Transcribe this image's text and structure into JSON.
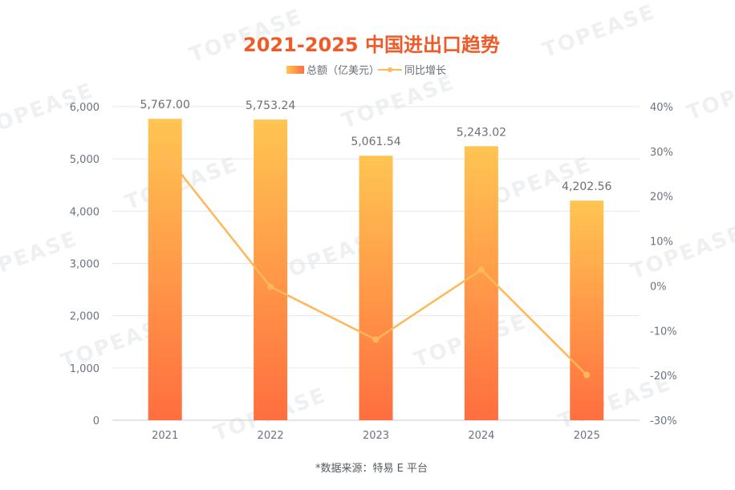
{
  "chart_data": {
    "type": "bar",
    "title": "2021-2025 中国进出口趋势",
    "categories": [
      "2021",
      "2022",
      "2023",
      "2024",
      "2025"
    ],
    "series": [
      {
        "name": "总额（亿美元）",
        "type": "bar",
        "axis": "left",
        "values": [
          5767.0,
          5753.24,
          5061.54,
          5243.02,
          4202.56
        ]
      },
      {
        "name": "同比增长",
        "type": "line",
        "axis": "right",
        "values": [
          29.5,
          -0.2,
          -12.0,
          3.6,
          -19.9
        ]
      }
    ],
    "data_labels": [
      "5,767.00",
      "5,753.24",
      "5,061.54",
      "5,243.02",
      "4,202.56"
    ],
    "y_left": {
      "min": 0,
      "max": 6000,
      "ticks": [
        "0",
        "1,000",
        "2,000",
        "3,000",
        "4,000",
        "5,000",
        "6,000"
      ]
    },
    "y_right": {
      "min": -30,
      "max": 40,
      "ticks": [
        "-30%",
        "-20%",
        "-10%",
        "0%",
        "10%",
        "20%",
        "30%",
        "40%"
      ]
    },
    "grid": true,
    "legend_position": "top-center",
    "colors": {
      "bar_top": "#ffc552",
      "bar_bottom": "#ff6e3f",
      "line": "#ffb75a",
      "title": "#f05a28"
    }
  },
  "source_note": "*数据来源：特易 E 平台",
  "watermark_text": "TOPEASE"
}
